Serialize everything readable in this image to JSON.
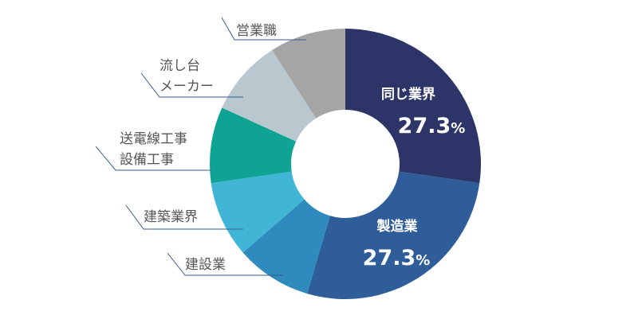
{
  "chart_data": {
    "type": "pie",
    "start_angle_deg": 0,
    "categories": [
      "同じ業界",
      "製造業",
      "建設業",
      "建築業界",
      "送電線工事設備工事",
      "流し台メーカー",
      "営業職"
    ],
    "values": [
      27.3,
      27.3,
      9.1,
      9.1,
      9.1,
      9.1,
      9.1
    ],
    "colors": [
      "#2d3468",
      "#2e5d9a",
      "#2f8bbd",
      "#41b5d6",
      "#0fa394",
      "#b9c7cf",
      "#a5a5a5"
    ],
    "value_labels": [
      {
        "name": "同じ業界",
        "number": "27.3",
        "unit": "%"
      },
      {
        "name": "製造業",
        "number": "27.3",
        "unit": "%"
      }
    ],
    "external_labels": [
      {
        "slice": 6,
        "lines": [
          "営業職"
        ]
      },
      {
        "slice": 5,
        "lines": [
          "流し台",
          "メーカー"
        ]
      },
      {
        "slice": 4,
        "lines": [
          "送電線工事",
          "設備工事"
        ]
      },
      {
        "slice": 3,
        "lines": [
          "建築業界"
        ]
      },
      {
        "slice": 2,
        "lines": [
          "建設業"
        ]
      }
    ],
    "leader_color": "#3a5a8c",
    "title": ""
  }
}
